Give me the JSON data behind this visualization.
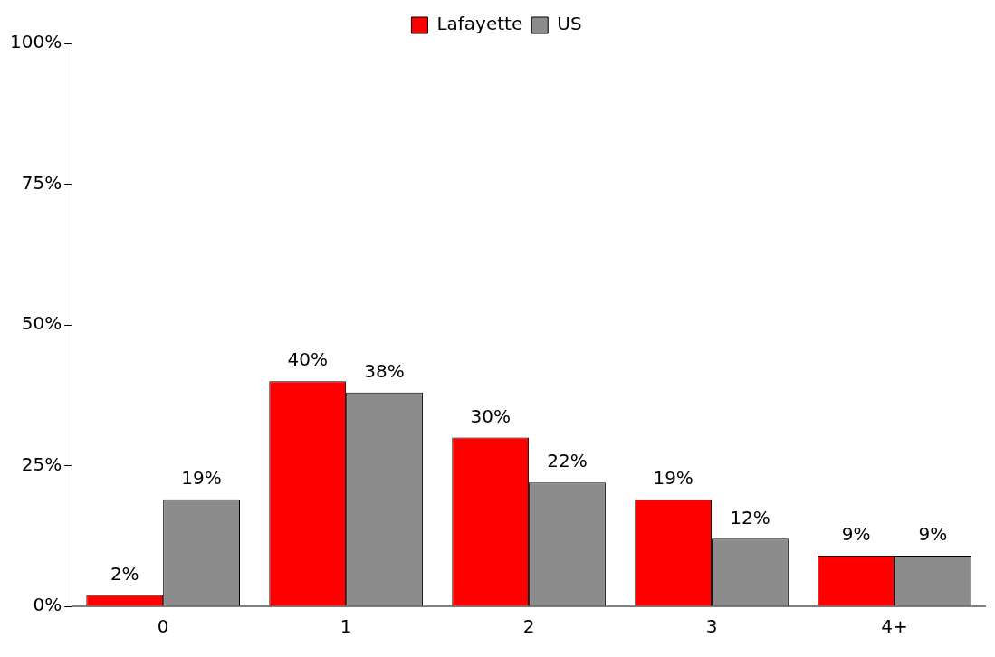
{
  "chart_data": {
    "type": "bar",
    "categories": [
      "0",
      "1",
      "2",
      "3",
      "4+"
    ],
    "series": [
      {
        "name": "Lafayette",
        "color": "#ff0000",
        "values": [
          2,
          40,
          30,
          19,
          9
        ],
        "value_labels": [
          "2%",
          "40%",
          "30%",
          "19%",
          "9%"
        ]
      },
      {
        "name": "US",
        "color": "#8c8c8c",
        "values": [
          19,
          38,
          22,
          12,
          9
        ],
        "value_labels": [
          "19%",
          "38%",
          "22%",
          "12%",
          "9%"
        ]
      }
    ],
    "ylim": [
      0,
      100
    ],
    "yticks": [
      {
        "value": 0,
        "label": "0%"
      },
      {
        "value": 25,
        "label": "25%"
      },
      {
        "value": 50,
        "label": "50%"
      },
      {
        "value": 75,
        "label": "75%"
      },
      {
        "value": 100,
        "label": "100%"
      }
    ],
    "grid": false,
    "legend": "top"
  }
}
